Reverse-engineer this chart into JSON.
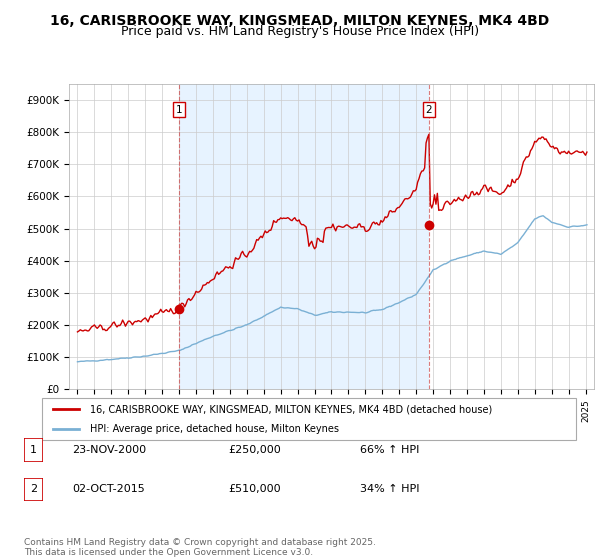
{
  "title": "16, CARISBROOKE WAY, KINGSMEAD, MILTON KEYNES, MK4 4BD",
  "subtitle": "Price paid vs. HM Land Registry's House Price Index (HPI)",
  "title_fontsize": 10,
  "subtitle_fontsize": 9,
  "legend_line1": "16, CARISBROOKE WAY, KINGSMEAD, MILTON KEYNES, MK4 4BD (detached house)",
  "legend_line2": "HPI: Average price, detached house, Milton Keynes",
  "transaction1_label": "1",
  "transaction1_date": "23-NOV-2000",
  "transaction1_price": "£250,000",
  "transaction1_hpi": "66% ↑ HPI",
  "transaction2_label": "2",
  "transaction2_date": "02-OCT-2015",
  "transaction2_price": "£510,000",
  "transaction2_hpi": "34% ↑ HPI",
  "footer": "Contains HM Land Registry data © Crown copyright and database right 2025.\nThis data is licensed under the Open Government Licence v3.0.",
  "red_color": "#cc0000",
  "blue_color": "#7ab0d4",
  "shade_color": "#ddeeff",
  "ylim": [
    0,
    950000
  ],
  "yticks": [
    0,
    100000,
    200000,
    300000,
    400000,
    500000,
    600000,
    700000,
    800000,
    900000
  ],
  "ytick_labels": [
    "£0",
    "£100K",
    "£200K",
    "£300K",
    "£400K",
    "£500K",
    "£600K",
    "£700K",
    "£800K",
    "£900K"
  ],
  "transaction1_x": 2001.0,
  "transaction1_y": 250000,
  "transaction2_x": 2015.75,
  "transaction2_y": 510000,
  "xlim_start": 1994.5,
  "xlim_end": 2025.5
}
